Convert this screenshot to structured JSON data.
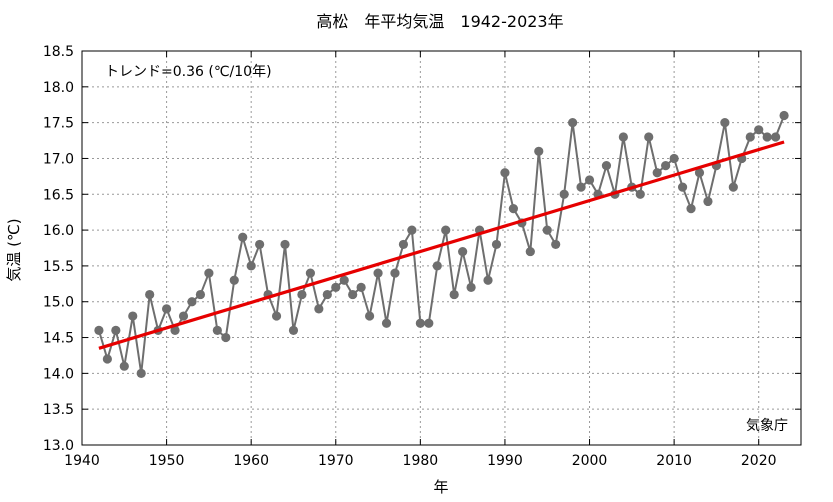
{
  "chart_data": {
    "type": "line",
    "title": "高松　年平均気温　1942-2023年",
    "xlabel": "年",
    "ylabel": "気温 (℃)",
    "xlim": [
      1940,
      2025
    ],
    "ylim": [
      13.0,
      18.5
    ],
    "x_ticks": [
      1940,
      1950,
      1960,
      1970,
      1980,
      1990,
      2000,
      2010,
      2020
    ],
    "y_ticks": [
      "13.0",
      "13.5",
      "14.0",
      "14.5",
      "15.0",
      "15.5",
      "16.0",
      "16.5",
      "17.0",
      "17.5",
      "18.0",
      "18.5"
    ],
    "grid": "dashed",
    "trend_text": "トレンド=0.36 (℃/10年)",
    "source_text": "気象庁",
    "colors": {
      "series": "#6e6e6e",
      "trend": "#e60000"
    },
    "series": [
      {
        "x": [
          1942,
          1943,
          1944,
          1945,
          1946,
          1947,
          1948,
          1949,
          1950,
          1951,
          1952,
          1953,
          1954,
          1955,
          1956,
          1957,
          1958,
          1959,
          1960,
          1961,
          1962,
          1963,
          1964,
          1965,
          1966,
          1967,
          1968,
          1969,
          1970,
          1971,
          1972,
          1973,
          1974,
          1975,
          1976,
          1977,
          1978,
          1979,
          1980,
          1981,
          1982,
          1983,
          1984,
          1985,
          1986,
          1987,
          1988,
          1989,
          1990,
          1991,
          1992,
          1993,
          1994,
          1995,
          1996,
          1997,
          1998,
          1999,
          2000,
          2001,
          2002,
          2003,
          2004,
          2005,
          2006,
          2007,
          2008,
          2009,
          2010,
          2011,
          2012,
          2013,
          2014,
          2015,
          2016,
          2017,
          2018,
          2019,
          2020,
          2021,
          2022,
          2023
        ],
        "values": [
          14.6,
          14.2,
          14.6,
          14.1,
          14.8,
          14.0,
          15.1,
          14.6,
          14.9,
          14.6,
          14.8,
          15.0,
          15.1,
          15.4,
          14.6,
          14.5,
          15.3,
          15.9,
          15.5,
          15.8,
          15.1,
          14.8,
          15.8,
          14.6,
          15.1,
          15.4,
          14.9,
          15.1,
          15.2,
          15.3,
          15.1,
          15.2,
          14.8,
          15.4,
          14.7,
          15.4,
          15.8,
          16.0,
          14.7,
          14.7,
          15.5,
          16.0,
          15.1,
          15.7,
          15.2,
          16.0,
          15.3,
          15.8,
          16.8,
          16.3,
          16.1,
          15.7,
          17.1,
          16.0,
          15.8,
          16.5,
          17.5,
          16.6,
          16.7,
          16.5,
          16.9,
          16.5,
          17.3,
          16.6,
          16.5,
          17.3,
          16.8,
          16.9,
          17.0,
          16.6,
          16.3,
          16.8,
          16.4,
          16.9,
          17.5,
          16.6,
          17.0,
          17.3,
          17.4,
          17.3,
          17.3,
          17.6
        ]
      }
    ],
    "trend": {
      "x": [
        1942,
        2023
      ],
      "y": [
        14.35,
        17.23
      ]
    }
  }
}
